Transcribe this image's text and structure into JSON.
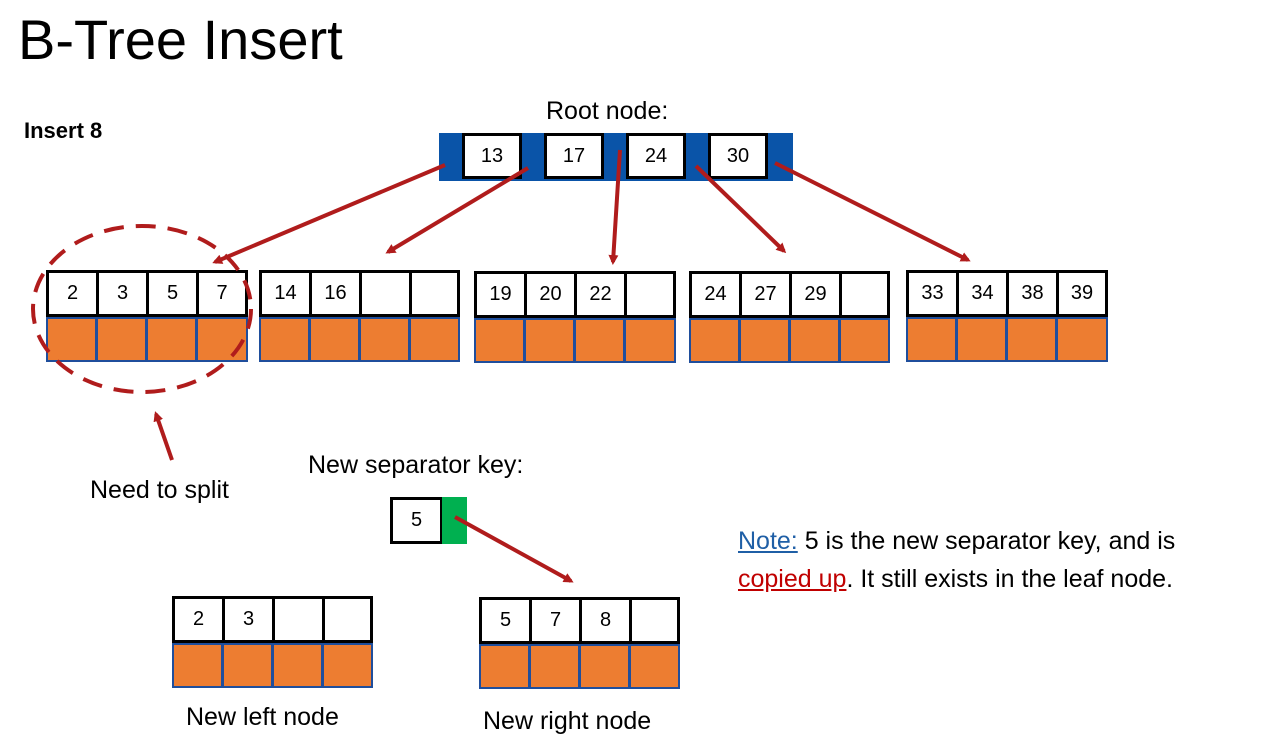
{
  "title": "B-Tree Insert",
  "operation": "Insert 8",
  "root_label": "Root node:",
  "root_keys": [
    "13",
    "17",
    "24",
    "30"
  ],
  "leaves": [
    [
      "2",
      "3",
      "5",
      "7"
    ],
    [
      "14",
      "16",
      "",
      ""
    ],
    [
      "19",
      "20",
      "22",
      ""
    ],
    [
      "24",
      "27",
      "29",
      ""
    ],
    [
      "33",
      "34",
      "38",
      "39"
    ]
  ],
  "split_label": "Need to split",
  "separator_label": "New separator key:",
  "separator_key": "5",
  "new_left_keys": [
    "2",
    "3",
    "",
    ""
  ],
  "new_right_keys": [
    "5",
    "7",
    "8",
    ""
  ],
  "new_left_label": "New left node",
  "new_right_label": "New right node",
  "note": {
    "prefix": "Note:",
    "text1": " 5 is the new separator key, and is",
    "highlight": "copied up",
    "text2": ". It still exists in the leaf node."
  },
  "colors": {
    "root_bar": "#0a54a8",
    "leaf_value": "#ed7d31",
    "arrow": "#b01c1c",
    "pointer_green": "#00b050"
  }
}
